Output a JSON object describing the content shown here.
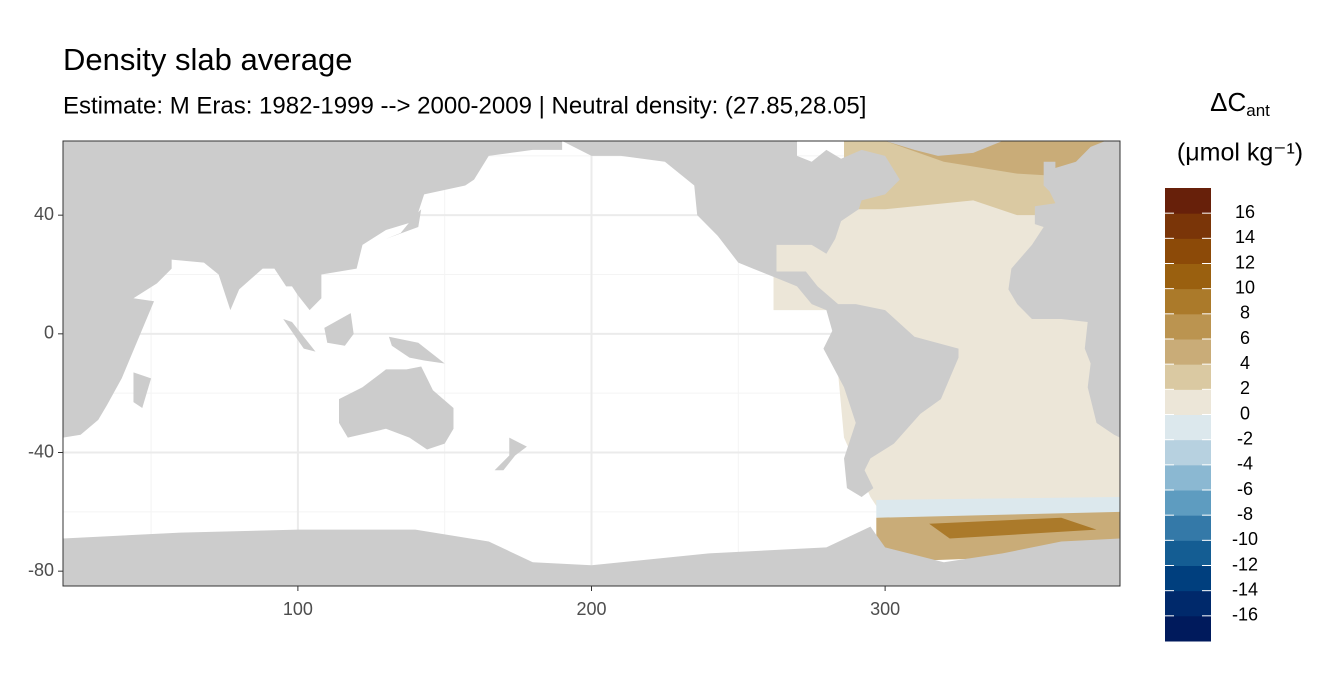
{
  "chart_data": {
    "type": "map",
    "title": "Density slab average",
    "subtitle": "Estimate: M Eras: 1982-1999 --> 2000-2009 | Neutral density: (27.85,28.05]",
    "xlim": [
      20,
      380
    ],
    "xticks": [
      100,
      200,
      300
    ],
    "ylim": [
      -85,
      65
    ],
    "yticks": [
      40,
      0,
      -40,
      -80
    ],
    "grid": true,
    "land_color": "#cccccc",
    "legend": {
      "title": "ΔC",
      "title_subscript": "ant",
      "unit": "(μmol kg⁻¹)",
      "limits": [
        -18,
        18
      ],
      "ticks": [
        16,
        14,
        12,
        10,
        8,
        6,
        4,
        2,
        0,
        -2,
        -4,
        -6,
        -8,
        -10,
        -12,
        -14,
        -16
      ],
      "colors": [
        "#001a5c",
        "#00296b",
        "#003f7e",
        "#145d93",
        "#3479a8",
        "#5e9cc0",
        "#8bb8d2",
        "#b7d1e0",
        "#dce8ed",
        "#ece6d8",
        "#dac9a2",
        "#c9ac78",
        "#bb9450",
        "#ab7a2a",
        "#9a600f",
        "#8c4a08",
        "#7a3508",
        "#67200a"
      ]
    }
  }
}
